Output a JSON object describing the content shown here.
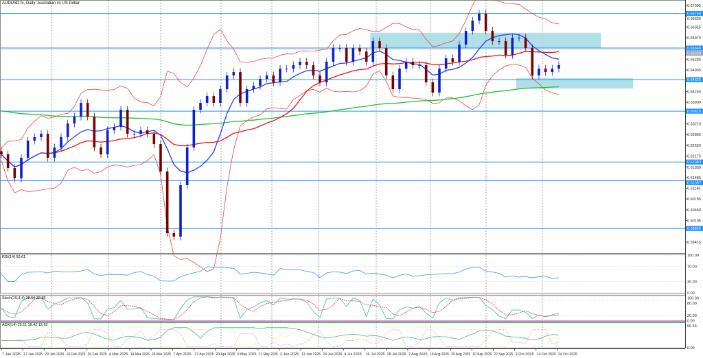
{
  "title": "AUDUSD.fs, Daily:  Australian vs US Dollar",
  "chart_data": {
    "type": "candlestick",
    "symbol": "AUDUSD.fs",
    "timeframe": "Daily",
    "closes": [
      0.6223,
      0.6179,
      0.6146,
      0.6212,
      0.6267,
      0.6278,
      0.6289,
      0.6212,
      0.6245,
      0.6278,
      0.6322,
      0.6344,
      0.6388,
      0.6344,
      0.6245,
      0.6223,
      0.63,
      0.6311,
      0.6366,
      0.6289,
      0.6289,
      0.63,
      0.6289,
      0.6256,
      0.6168,
      0.597,
      0.5959,
      0.6124,
      0.6245,
      0.6366,
      0.6388,
      0.641,
      0.6388,
      0.6432,
      0.6476,
      0.6487,
      0.6388,
      0.6432,
      0.6443,
      0.6465,
      0.6476,
      0.6454,
      0.6498,
      0.6498,
      0.6509,
      0.652,
      0.6509,
      0.6476,
      0.6454,
      0.652,
      0.6564,
      0.6564,
      0.652,
      0.6564,
      0.6553,
      0.652,
      0.6586,
      0.6564,
      0.6476,
      0.6432,
      0.6498,
      0.652,
      0.6509,
      0.6509,
      0.6454,
      0.6421,
      0.6498,
      0.6531,
      0.652,
      0.6575,
      0.6619,
      0.6652,
      0.6674,
      0.6619,
      0.6586,
      0.6586,
      0.6542,
      0.6597,
      0.6597,
      0.6564,
      0.6476,
      0.6498,
      0.6487,
      0.6498,
      0.6509
    ],
    "price_axis_ticks": [
      "0.67005",
      "0.66660",
      "0.66315",
      "0.65970",
      "0.65280",
      "0.64935",
      "0.64246",
      "0.63900",
      "0.63210",
      "0.62865",
      "0.62520",
      "0.62175",
      "0.61830",
      "0.61485",
      "0.61140",
      "0.60795",
      "0.60450",
      "0.60105",
      "0.59415"
    ],
    "levels": [
      {
        "price": "0.66750",
        "color": "#1e90ff"
      },
      {
        "price": "0.65640",
        "color": "#1e90ff"
      },
      {
        "price": "0.64625",
        "color": "#1e90ff"
      },
      {
        "price": "0.63615",
        "color": "#1e90ff"
      },
      {
        "price": "0.61983",
        "color": "#1e90ff"
      },
      {
        "price": "0.61387",
        "color": "#1e90ff"
      },
      {
        "price": "0.59850",
        "color": "#1e90ff"
      }
    ],
    "current_price": "0.65600",
    "zones": [
      {
        "top": 0.6613,
        "bottom": 0.6564,
        "start_index": 56,
        "color": "#a9dbe6"
      },
      {
        "top": 0.6467,
        "bottom": 0.6434,
        "start_index": 78,
        "color": "#a9dbe6"
      }
    ],
    "x_labels": [
      "7 Jan 2025",
      "17 Jan 2025",
      "29 Jan 2025",
      "10 Feb 2025",
      "20 Feb 2025",
      "4 Mar 2025",
      "14 Mar 2025",
      "26 Mar 2025",
      "7 Apr 2025",
      "17 Apr 2025",
      "29 Apr 2025",
      "9 May 2025",
      "21 May 2025",
      "2 Jun 2025",
      "12 Jun 2025",
      "24 Jun 2025",
      "4 Jul 2025",
      "16 Jul 2025",
      "28 Jul 2025",
      "7 Aug 2025",
      "19 Aug 2025",
      "29 Aug 2025",
      "10 Sep 2025",
      "22 Sep 2025",
      "2 Oct 2025",
      "14 Oct 2025",
      "24 Oct 2025"
    ],
    "colors": {
      "bull": "#1020c8",
      "bear": "#7a0000",
      "ma_fast": "#1e3cff",
      "ma_mid": "#e8101a",
      "ma_slow": "#22c02a",
      "bands": "#f04040"
    },
    "indicators": {
      "rsi": {
        "label": "RSI(14) 50.61",
        "ticks": [
          "100.00",
          "70.00",
          "30.00",
          "0.00"
        ],
        "color": "#4aa0f0"
      },
      "stoch": {
        "label": "Stoch(15,4,4) 38.54 32.85",
        "ticks": [
          "100.00",
          "80.00",
          "20.00",
          "0.00"
        ],
        "main_color": "#40c8b8",
        "signal_color": "#f03030"
      },
      "adx": {
        "label": "ADX(14) 25.11 18.42 12.62",
        "ticks": [
          "56.56",
          "0.00"
        ],
        "adx_color": "#3cb878",
        "plus_color": "#e8e070",
        "minus_color": "#e080a0"
      }
    }
  }
}
